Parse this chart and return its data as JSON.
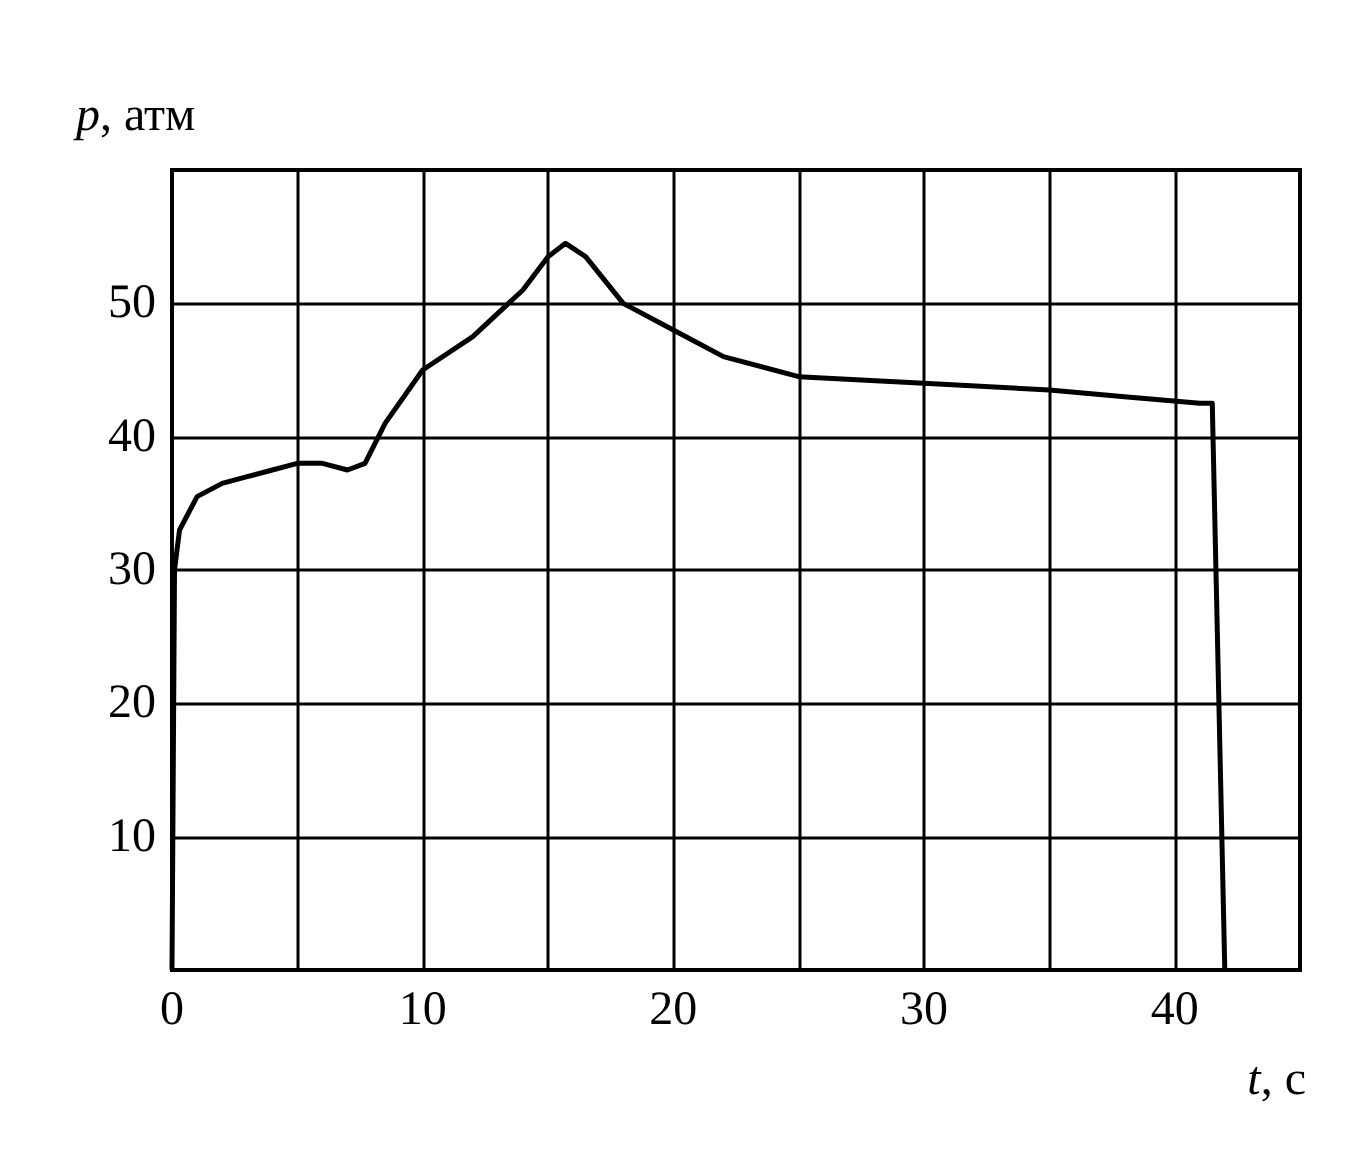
{
  "chart_data": {
    "type": "line",
    "xlabel": "t, с",
    "ylabel": "p, атм",
    "xlim": [
      0,
      45
    ],
    "ylim": [
      0,
      60
    ],
    "xticks": [
      0,
      {
        "value": 5,
        "label": null
      },
      10,
      {
        "value": 15,
        "label": null
      },
      20,
      {
        "value": 25,
        "label": null
      },
      30,
      {
        "value": 35,
        "label": null
      },
      40,
      {
        "value": 45,
        "label": null
      }
    ],
    "yticks": [
      {
        "value": 0,
        "label": null
      },
      10,
      20,
      30,
      40,
      50,
      {
        "value": 60,
        "label": null
      }
    ],
    "grid": true,
    "marker": "none",
    "line_style": "solid",
    "series": [
      {
        "color": "#000000",
        "x": [
          0,
          0.1,
          0.3,
          1,
          2,
          3,
          4,
          5,
          6,
          7,
          7.7,
          8.5,
          10,
          12,
          14,
          15,
          15.7,
          16.5,
          18,
          20,
          22,
          25,
          30,
          35,
          38,
          41,
          41.5,
          42
        ],
        "values": [
          0,
          30,
          33,
          35.5,
          36.5,
          37,
          37.5,
          38,
          38,
          37.5,
          38,
          41,
          45,
          47.5,
          51,
          53.5,
          54.5,
          53.5,
          50,
          48,
          46,
          44.5,
          44,
          43.5,
          43,
          42.5,
          42.5,
          0
        ]
      }
    ]
  }
}
